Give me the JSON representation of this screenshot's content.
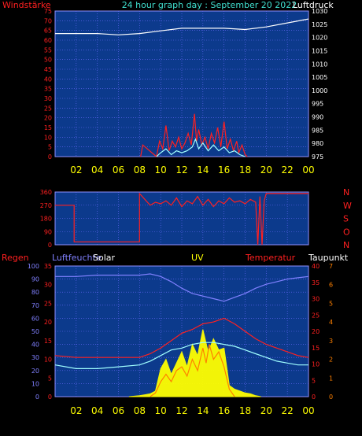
{
  "header": {
    "left_title": "Windstärke",
    "center_title": "24 hour graph day : September 20 2022",
    "right_title": "Luftdruck"
  },
  "bottom_labels": {
    "regen": "Regen",
    "luftfeuchte": "Luftfeuchte",
    "solar": "Solar",
    "uv": "UV",
    "temperatur": "Temperatur",
    "taupunkt": "Taupunkt"
  },
  "colors": {
    "plot_bg": "#0c3a8c",
    "grid": "#6b6bff",
    "axis_red": "#ff2020",
    "axis_yellow": "#ffff00",
    "pressure": "#ffffff",
    "wind": "#ff2020",
    "gust": "#a0ffff",
    "humidity": "#8080ff",
    "temperature": "#ff2020",
    "dewpoint": "#a0ffff",
    "solar": "#ffff00",
    "uv": "#ff8000"
  },
  "chart_data": [
    {
      "type": "line",
      "name": "wind-pressure",
      "x_ticks": [
        "02",
        "04",
        "06",
        "08",
        "10",
        "12",
        "14",
        "16",
        "18",
        "20",
        "22",
        "00"
      ],
      "y_left_ticks": [
        "0",
        "5",
        "10",
        "15",
        "20",
        "25",
        "30",
        "35",
        "40",
        "45",
        "50",
        "55",
        "60",
        "65",
        "70",
        "75"
      ],
      "y_left_range": [
        0,
        75
      ],
      "y_right_ticks": [
        "975",
        "980",
        "985",
        "990",
        "995",
        "1000",
        "1005",
        "1010",
        "1015",
        "1020",
        "1025",
        "1030"
      ],
      "y_right_range": [
        975,
        1030
      ],
      "series": [
        {
          "name": "Luftdruck",
          "axis": "right",
          "x": [
            0,
            2,
            4,
            6,
            8,
            10,
            12,
            14,
            16,
            18,
            20,
            22,
            24
          ],
          "y": [
            1021.5,
            1021.5,
            1021.5,
            1021,
            1021.5,
            1022.5,
            1023.5,
            1023.5,
            1023.5,
            1023,
            1024,
            1025.5,
            1027
          ]
        },
        {
          "name": "Windstärke",
          "axis": "left",
          "x": [
            8.1,
            8.3,
            9.6,
            9.9,
            10.2,
            10.5,
            10.8,
            11.1,
            11.4,
            11.7,
            12.0,
            12.3,
            12.6,
            12.9,
            13.2,
            13.4,
            13.6,
            13.9,
            14.2,
            14.5,
            14.8,
            15.1,
            15.4,
            15.7,
            16.0,
            16.3,
            16.6,
            16.9,
            17.2,
            17.4,
            17.7,
            18.0,
            18.2
          ],
          "y": [
            0,
            6,
            0,
            8,
            4,
            16,
            3,
            8,
            5,
            10,
            4,
            7,
            12,
            6,
            22,
            8,
            14,
            6,
            10,
            4,
            12,
            7,
            15,
            5,
            18,
            4,
            9,
            3,
            8,
            2,
            6,
            1,
            0
          ]
        },
        {
          "name": "Gust",
          "axis": "left",
          "x": [
            9.6,
            10.0,
            10.5,
            11.0,
            11.5,
            12.0,
            12.5,
            13.0,
            13.3,
            13.6,
            14.0,
            14.5,
            15.0,
            15.5,
            16.0,
            16.5,
            17.0,
            17.5,
            18.0
          ],
          "y": [
            0,
            2,
            4,
            1,
            3,
            2,
            3,
            5,
            9,
            4,
            7,
            3,
            6,
            3,
            5,
            2,
            3,
            1,
            0
          ]
        }
      ]
    },
    {
      "type": "line",
      "name": "wind-direction",
      "x_ticks": [
        "02",
        "04",
        "06",
        "08",
        "10",
        "12",
        "14",
        "16",
        "18",
        "20",
        "22",
        "00"
      ],
      "y_left_ticks": [
        "0",
        "90",
        "180",
        "270",
        "360"
      ],
      "y_left_range": [
        0,
        360
      ],
      "y_right_ticks": [
        "N",
        "O",
        "S",
        "W",
        "N"
      ],
      "series": [
        {
          "name": "Windrichtung",
          "x": [
            0,
            1.8,
            1.8,
            8.0,
            8.0,
            9.0,
            9.5,
            10.0,
            10.5,
            11.0,
            11.5,
            12.0,
            12.5,
            13.0,
            13.5,
            14.0,
            14.5,
            15.0,
            15.5,
            16.0,
            16.5,
            17.0,
            17.5,
            18.0,
            18.5,
            19.0,
            19.2,
            19.4,
            19.6,
            19.8,
            20.0,
            24.0
          ],
          "y": [
            270,
            270,
            20,
            20,
            350,
            270,
            290,
            280,
            300,
            270,
            320,
            260,
            300,
            280,
            330,
            270,
            310,
            260,
            300,
            280,
            320,
            290,
            300,
            280,
            310,
            290,
            0,
            330,
            0,
            300,
            350,
            350
          ]
        }
      ]
    },
    {
      "type": "line",
      "name": "rain-humidity-solar-uv-temp",
      "x_ticks": [
        "02",
        "04",
        "06",
        "08",
        "10",
        "12",
        "14",
        "16",
        "18",
        "20",
        "22",
        "00"
      ],
      "y_regen_ticks": [
        "0",
        "10",
        "20",
        "30",
        "40",
        "50",
        "60",
        "70",
        "80",
        "90",
        "100"
      ],
      "y_luftfeuchte_ticks": [
        "0",
        "5",
        "10",
        "15",
        "20",
        "25",
        "30",
        "35"
      ],
      "y_temperatur_ticks": [
        "0",
        "5",
        "10",
        "15",
        "20",
        "25",
        "30",
        "35",
        "40"
      ],
      "y_taupunkt_ticks": [
        "0",
        "1",
        "2",
        "3",
        "4",
        "5",
        "6",
        "7"
      ],
      "humidity_range": [
        0,
        100
      ],
      "temp_range": [
        0,
        35
      ],
      "uv_range": [
        0,
        7
      ],
      "series": [
        {
          "name": "Luftfeuchte",
          "x": [
            0,
            2,
            4,
            6,
            8,
            9,
            10,
            11,
            12,
            13,
            14,
            15,
            16,
            17,
            18,
            19,
            20,
            21,
            22,
            23,
            24
          ],
          "y": [
            92,
            92,
            93,
            93,
            93,
            94,
            92,
            88,
            83,
            79,
            77,
            75,
            73,
            76,
            79,
            83,
            86,
            88,
            90,
            91,
            92
          ]
        },
        {
          "name": "Temperatur",
          "x": [
            0,
            2,
            4,
            6,
            8,
            9,
            10,
            11,
            12,
            13,
            14,
            15,
            16,
            17,
            18,
            19,
            20,
            21,
            22,
            23,
            24
          ],
          "y": [
            11,
            10.5,
            10.5,
            10.5,
            10.5,
            11.5,
            13,
            15,
            17,
            18,
            19.5,
            20,
            21,
            19.5,
            17.5,
            15.5,
            14,
            13,
            12,
            11,
            10.5
          ]
        },
        {
          "name": "Taupunkt",
          "x": [
            0,
            2,
            4,
            6,
            8,
            9,
            10,
            11,
            12,
            13,
            14,
            15,
            16,
            17,
            18,
            19,
            20,
            21,
            22,
            23,
            24
          ],
          "y": [
            8.5,
            7.5,
            7.5,
            8,
            8.5,
            9.5,
            11,
            12.5,
            13,
            14,
            14.5,
            14.5,
            14,
            13.5,
            12.5,
            11.5,
            10.5,
            9.5,
            9,
            8.5,
            8.5
          ]
        },
        {
          "name": "Solar",
          "x": [
            7.0,
            8.0,
            8.5,
            9.0,
            9.5,
            10.0,
            10.5,
            11.0,
            11.5,
            12.0,
            12.5,
            13.0,
            13.5,
            14.0,
            14.5,
            15.0,
            15.5,
            16.0,
            16.5,
            17.0,
            17.5,
            18.0,
            18.5,
            19.0,
            19.5
          ],
          "y": [
            0,
            0.05,
            0.1,
            0.15,
            0.3,
            1.5,
            2.0,
            1.2,
            1.8,
            2.4,
            1.6,
            2.8,
            2.2,
            3.6,
            2.4,
            3.1,
            2.5,
            2.6,
            0.6,
            0.4,
            0.3,
            0.2,
            0.15,
            0.05,
            0
          ]
        },
        {
          "name": "UV",
          "x": [
            9.0,
            9.5,
            10.0,
            10.5,
            11.0,
            11.5,
            12.0,
            12.5,
            13.0,
            13.5,
            14.0,
            14.3,
            14.6,
            15.0,
            15.5,
            16.0,
            16.5,
            17.0
          ],
          "y": [
            0,
            0.2,
            0.8,
            1.2,
            0.8,
            1.4,
            1.6,
            1.1,
            2.0,
            1.4,
            2.6,
            1.8,
            2.8,
            2.0,
            2.4,
            1.6,
            0.4,
            0
          ]
        }
      ]
    }
  ]
}
